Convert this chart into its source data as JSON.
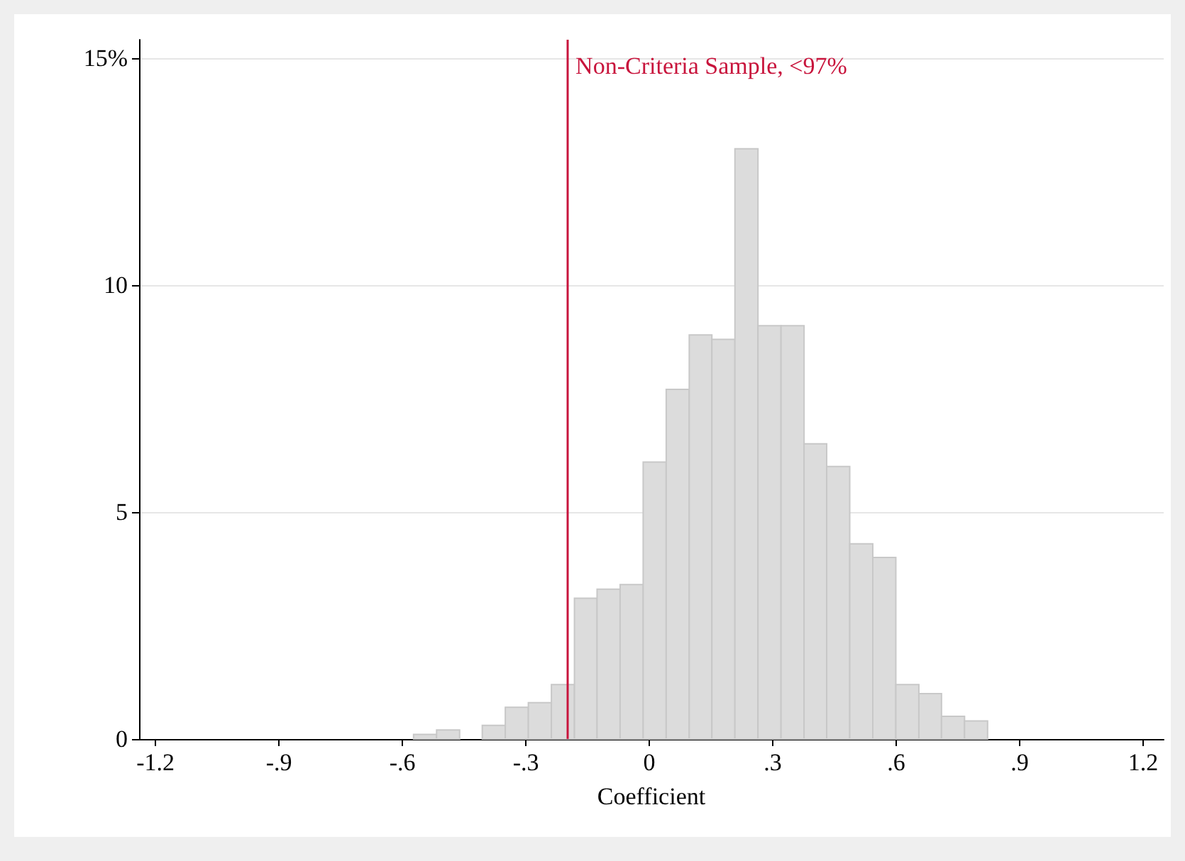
{
  "chart_data": {
    "type": "histogram",
    "xlabel": "Coefficient",
    "bins": [
      -0.573,
      -0.517,
      -0.461,
      -0.406,
      -0.35,
      -0.294,
      -0.238,
      -0.182,
      -0.127,
      -0.071,
      -0.015,
      0.041,
      0.097,
      0.152,
      0.208,
      0.264,
      0.32,
      0.376,
      0.431,
      0.487,
      0.543,
      0.599,
      0.655,
      0.71,
      0.766,
      0.822
    ],
    "values": [
      0.1,
      0.2,
      0,
      0.3,
      0.7,
      0.8,
      1.2,
      3.1,
      3.3,
      3.4,
      6.1,
      7.7,
      8.9,
      8.8,
      13,
      9.1,
      9.1,
      6.5,
      6.0,
      4.3,
      4.0,
      1.2,
      1.0,
      0.5,
      0.4
    ],
    "color": "#dcdcdc",
    "xlim": [
      -1.24,
      1.25
    ],
    "xticks": [
      {
        "value": -1.2,
        "label": "-1.2"
      },
      {
        "value": -0.9,
        "label": "-.9"
      },
      {
        "value": -0.6,
        "label": "-.6"
      },
      {
        "value": -0.3,
        "label": "-.3"
      },
      0,
      {
        "value": 0.3,
        "label": ".3"
      },
      {
        "value": 0.6,
        "label": ".6"
      },
      {
        "value": 0.9,
        "label": ".9"
      },
      {
        "value": 1.2,
        "label": "1.2"
      }
    ],
    "ylim": [
      0,
      15.4
    ],
    "yticks": [
      0,
      5,
      10,
      {
        "value": 15,
        "label": "15%"
      }
    ],
    "grid": "y",
    "ref_lines": [
      {
        "axis": "x",
        "value": -0.2,
        "label": "Non-Criteria Sample, <97%",
        "color": "#c8143c"
      }
    ]
  }
}
